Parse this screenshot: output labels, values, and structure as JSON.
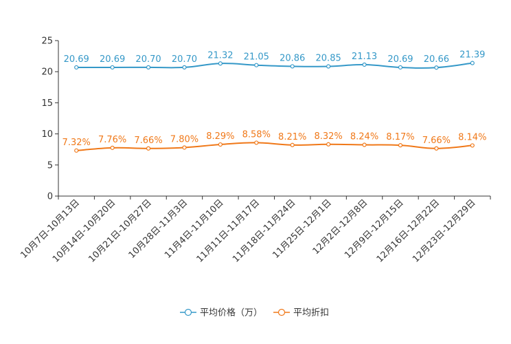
{
  "chart_data": {
    "type": "line",
    "title": "",
    "xlabel": "",
    "ylabel": "",
    "ylim": [
      0,
      25
    ],
    "yticks": [
      0,
      5,
      10,
      15,
      20,
      25
    ],
    "categories": [
      "10月7日-10月13日",
      "10月14日-10月20日",
      "10月21日-10月27日",
      "10月28日-11月3日",
      "11月4日-11月10日",
      "11月11日-11月17日",
      "11月18日-11月24日",
      "11月25日-12月1日",
      "12月2日-12月8日",
      "12月9日-12月15日",
      "12月16日-12月22日",
      "12月23日-12月29日"
    ],
    "series": [
      {
        "name": "平均价格（万）",
        "color": "#3498c8",
        "values": [
          20.69,
          20.69,
          20.7,
          20.7,
          21.32,
          21.05,
          20.86,
          20.85,
          21.13,
          20.69,
          20.66,
          21.39
        ],
        "labels": [
          "20.69",
          "20.69",
          "20.70",
          "20.70",
          "21.32",
          "21.05",
          "20.86",
          "20.85",
          "21.13",
          "20.69",
          "20.66",
          "21.39"
        ]
      },
      {
        "name": "平均折扣",
        "color": "#f07818",
        "values": [
          7.32,
          7.76,
          7.66,
          7.8,
          8.29,
          8.58,
          8.21,
          8.32,
          8.24,
          8.17,
          7.66,
          8.14
        ],
        "labels": [
          "7.32%",
          "7.76%",
          "7.66%",
          "7.80%",
          "8.29%",
          "8.58%",
          "8.21%",
          "8.32%",
          "8.24%",
          "8.17%",
          "7.66%",
          "8.14%"
        ]
      }
    ],
    "legend": "bottom-center",
    "grid": false
  }
}
